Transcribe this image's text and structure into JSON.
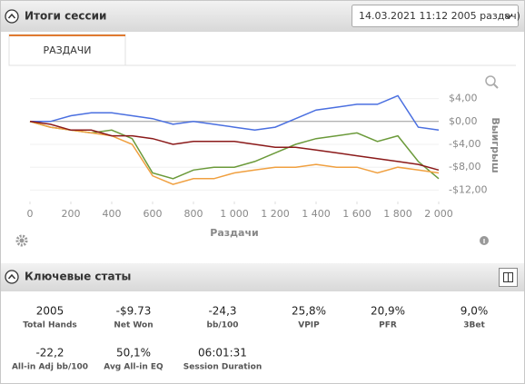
{
  "header": {
    "title": "Итоги сессии",
    "session_selector": "14.03.2021 11:12 2005 раздач)"
  },
  "tab": "РАЗДАЧИ",
  "chart_data": {
    "type": "line",
    "x_label": "Раздачи",
    "y_label": "Выигрыш",
    "x": [
      0,
      100,
      200,
      300,
      400,
      500,
      600,
      700,
      800,
      900,
      1000,
      1100,
      1200,
      1300,
      1400,
      1500,
      1600,
      1700,
      1800,
      1900,
      2000
    ],
    "series": [
      {
        "color": "#4a6fe0",
        "values": [
          0,
          0,
          1,
          1.5,
          1.5,
          1,
          0.5,
          -0.5,
          0,
          -0.5,
          -1,
          -1.5,
          -1,
          0.5,
          2,
          2.5,
          3,
          3,
          4.5,
          -1,
          -1.5
        ]
      },
      {
        "color": "#6b9a3a",
        "values": [
          0,
          -1,
          -1.5,
          -2,
          -1.5,
          -3,
          -9,
          -10,
          -8.5,
          -8,
          -8,
          -7,
          -5.5,
          -4,
          -3,
          -2.5,
          -2,
          -3.5,
          -2.5,
          -7,
          -10
        ]
      },
      {
        "color": "#f0a040",
        "values": [
          0,
          -1,
          -1.5,
          -2,
          -2.5,
          -4,
          -9.5,
          -11,
          -10,
          -10,
          -9,
          -8.5,
          -8,
          -8,
          -7.5,
          -8,
          -8,
          -9,
          -8,
          -8.5,
          -9
        ]
      },
      {
        "color": "#8b1a1a",
        "values": [
          0,
          -0.5,
          -1.5,
          -1.5,
          -2.5,
          -2.5,
          -3,
          -4,
          -3.5,
          -3.5,
          -3.5,
          -4,
          -4.5,
          -4.5,
          -5,
          -5.5,
          -6,
          -6.5,
          -7,
          -7.5,
          -8.5
        ]
      }
    ],
    "xlim": [
      0,
      2000
    ],
    "xticks": [
      0,
      200,
      400,
      600,
      800,
      {
        "value": 1000,
        "label": "1 000"
      },
      {
        "value": 1200,
        "label": "1 200"
      },
      {
        "value": 1400,
        "label": "1 400"
      },
      {
        "value": 1600,
        "label": "1 600"
      },
      {
        "value": 1800,
        "label": "1 800"
      },
      {
        "value": 2000,
        "label": "2 000"
      }
    ],
    "ylim": [
      -14,
      6
    ],
    "yticks": [
      {
        "value": 4,
        "label": "$4,00"
      },
      {
        "value": 0,
        "label": "$0,00"
      },
      {
        "value": -4,
        "label": "-$4,00"
      },
      {
        "value": -8,
        "label": "-$8,00"
      },
      {
        "value": -12,
        "label": "-$12,00"
      }
    ],
    "grid": true
  },
  "key_stats": {
    "title": "Ключевые статы",
    "stats": [
      {
        "value": "2005",
        "label": "Total Hands"
      },
      {
        "value": "-$9.73",
        "label": "Net Won"
      },
      {
        "value": "-24,3",
        "label": "bb/100"
      },
      {
        "value": "25,8%",
        "label": "VPIP"
      },
      {
        "value": "20,9%",
        "label": "PFR"
      },
      {
        "value": "9,0%",
        "label": "3Bet"
      },
      {
        "value": "-22,2",
        "label": "All-in Adj bb/100"
      },
      {
        "value": "50,1%",
        "label": "Avg All-in EQ"
      },
      {
        "value": "06:01:31",
        "label": "Session Duration"
      }
    ]
  }
}
